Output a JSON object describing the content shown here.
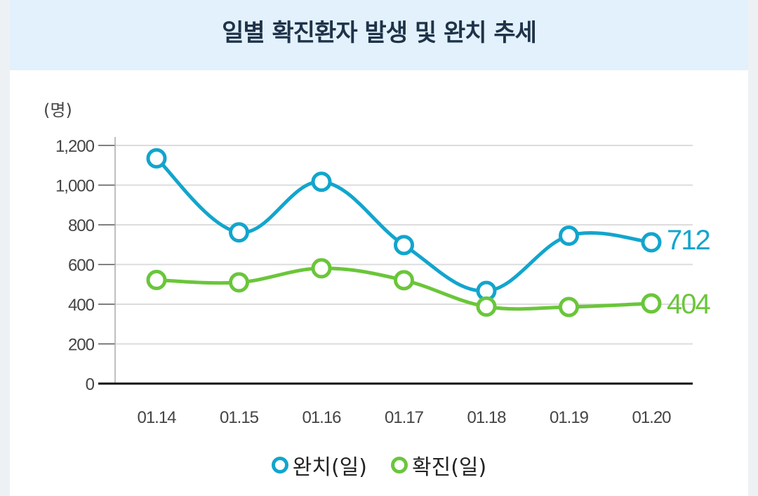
{
  "title": "일별 확진환자 발생 및 완치 추세",
  "colors": {
    "recovered": "#12a5cd",
    "confirmed": "#6ac63a"
  },
  "chart_data": {
    "type": "line",
    "title": "일별 확진환자 발생 및 완치 추세",
    "ylabel": "(명)",
    "xlabel": "",
    "categories": [
      "01.14",
      "01.15",
      "01.16",
      "01.17",
      "01.18",
      "01.19",
      "01.20"
    ],
    "ylim": [
      0,
      1200
    ],
    "yticks": [
      0,
      200,
      400,
      600,
      800,
      1000,
      1200
    ],
    "ytick_labels": [
      "0",
      "200",
      "400",
      "600",
      "800",
      "1,000",
      "1,200"
    ],
    "grid": true,
    "legend_position": "bottom",
    "series": [
      {
        "name": "완치(일)",
        "key": "recovered",
        "values": [
          1135,
          762,
          1017,
          698,
          467,
          745,
          712
        ],
        "end_label": "712"
      },
      {
        "name": "확진(일)",
        "key": "confirmed",
        "values": [
          522,
          510,
          581,
          521,
          388,
          386,
          404
        ],
        "end_label": "404"
      }
    ]
  }
}
